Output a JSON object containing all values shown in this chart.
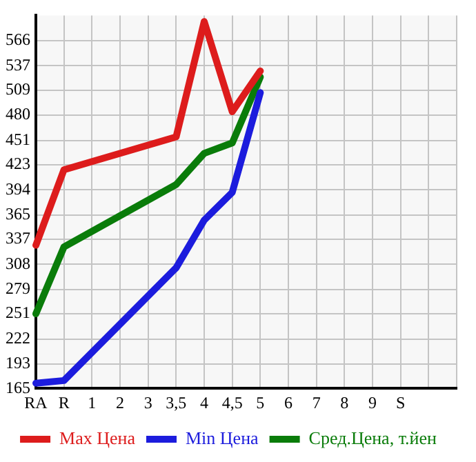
{
  "chart_data": {
    "type": "line",
    "categories": [
      "RA",
      "R",
      "1",
      "2",
      "3",
      "3,5",
      "4",
      "4,5",
      "5",
      "6",
      "7",
      "8",
      "9",
      "S",
      null,
      null
    ],
    "series": [
      {
        "name": "Max Цена",
        "color": "#dd1c1c",
        "values": [
          330,
          417,
          null,
          null,
          null,
          455,
          588,
          484,
          531,
          null,
          null,
          null,
          null,
          null,
          null,
          null
        ]
      },
      {
        "name": "Min Цена",
        "color": "#1c1cdd",
        "values": [
          171,
          174,
          null,
          null,
          null,
          304,
          359,
          391,
          506,
          null,
          null,
          null,
          null,
          null,
          null,
          null
        ]
      },
      {
        "name": "Сред.Цена, т.йен",
        "color": "#0a7c0a",
        "values": [
          251,
          328,
          null,
          null,
          null,
          400,
          436,
          448,
          524,
          null,
          null,
          null,
          null,
          null,
          null,
          null
        ]
      }
    ],
    "ylim": [
      165,
      595
    ],
    "yticks": [
      165,
      193,
      222,
      251,
      279,
      308,
      337,
      365,
      394,
      423,
      451,
      480,
      509,
      537,
      566
    ],
    "grid": true,
    "legend": "bottom",
    "marker": "none",
    "line_style": "solid"
  }
}
